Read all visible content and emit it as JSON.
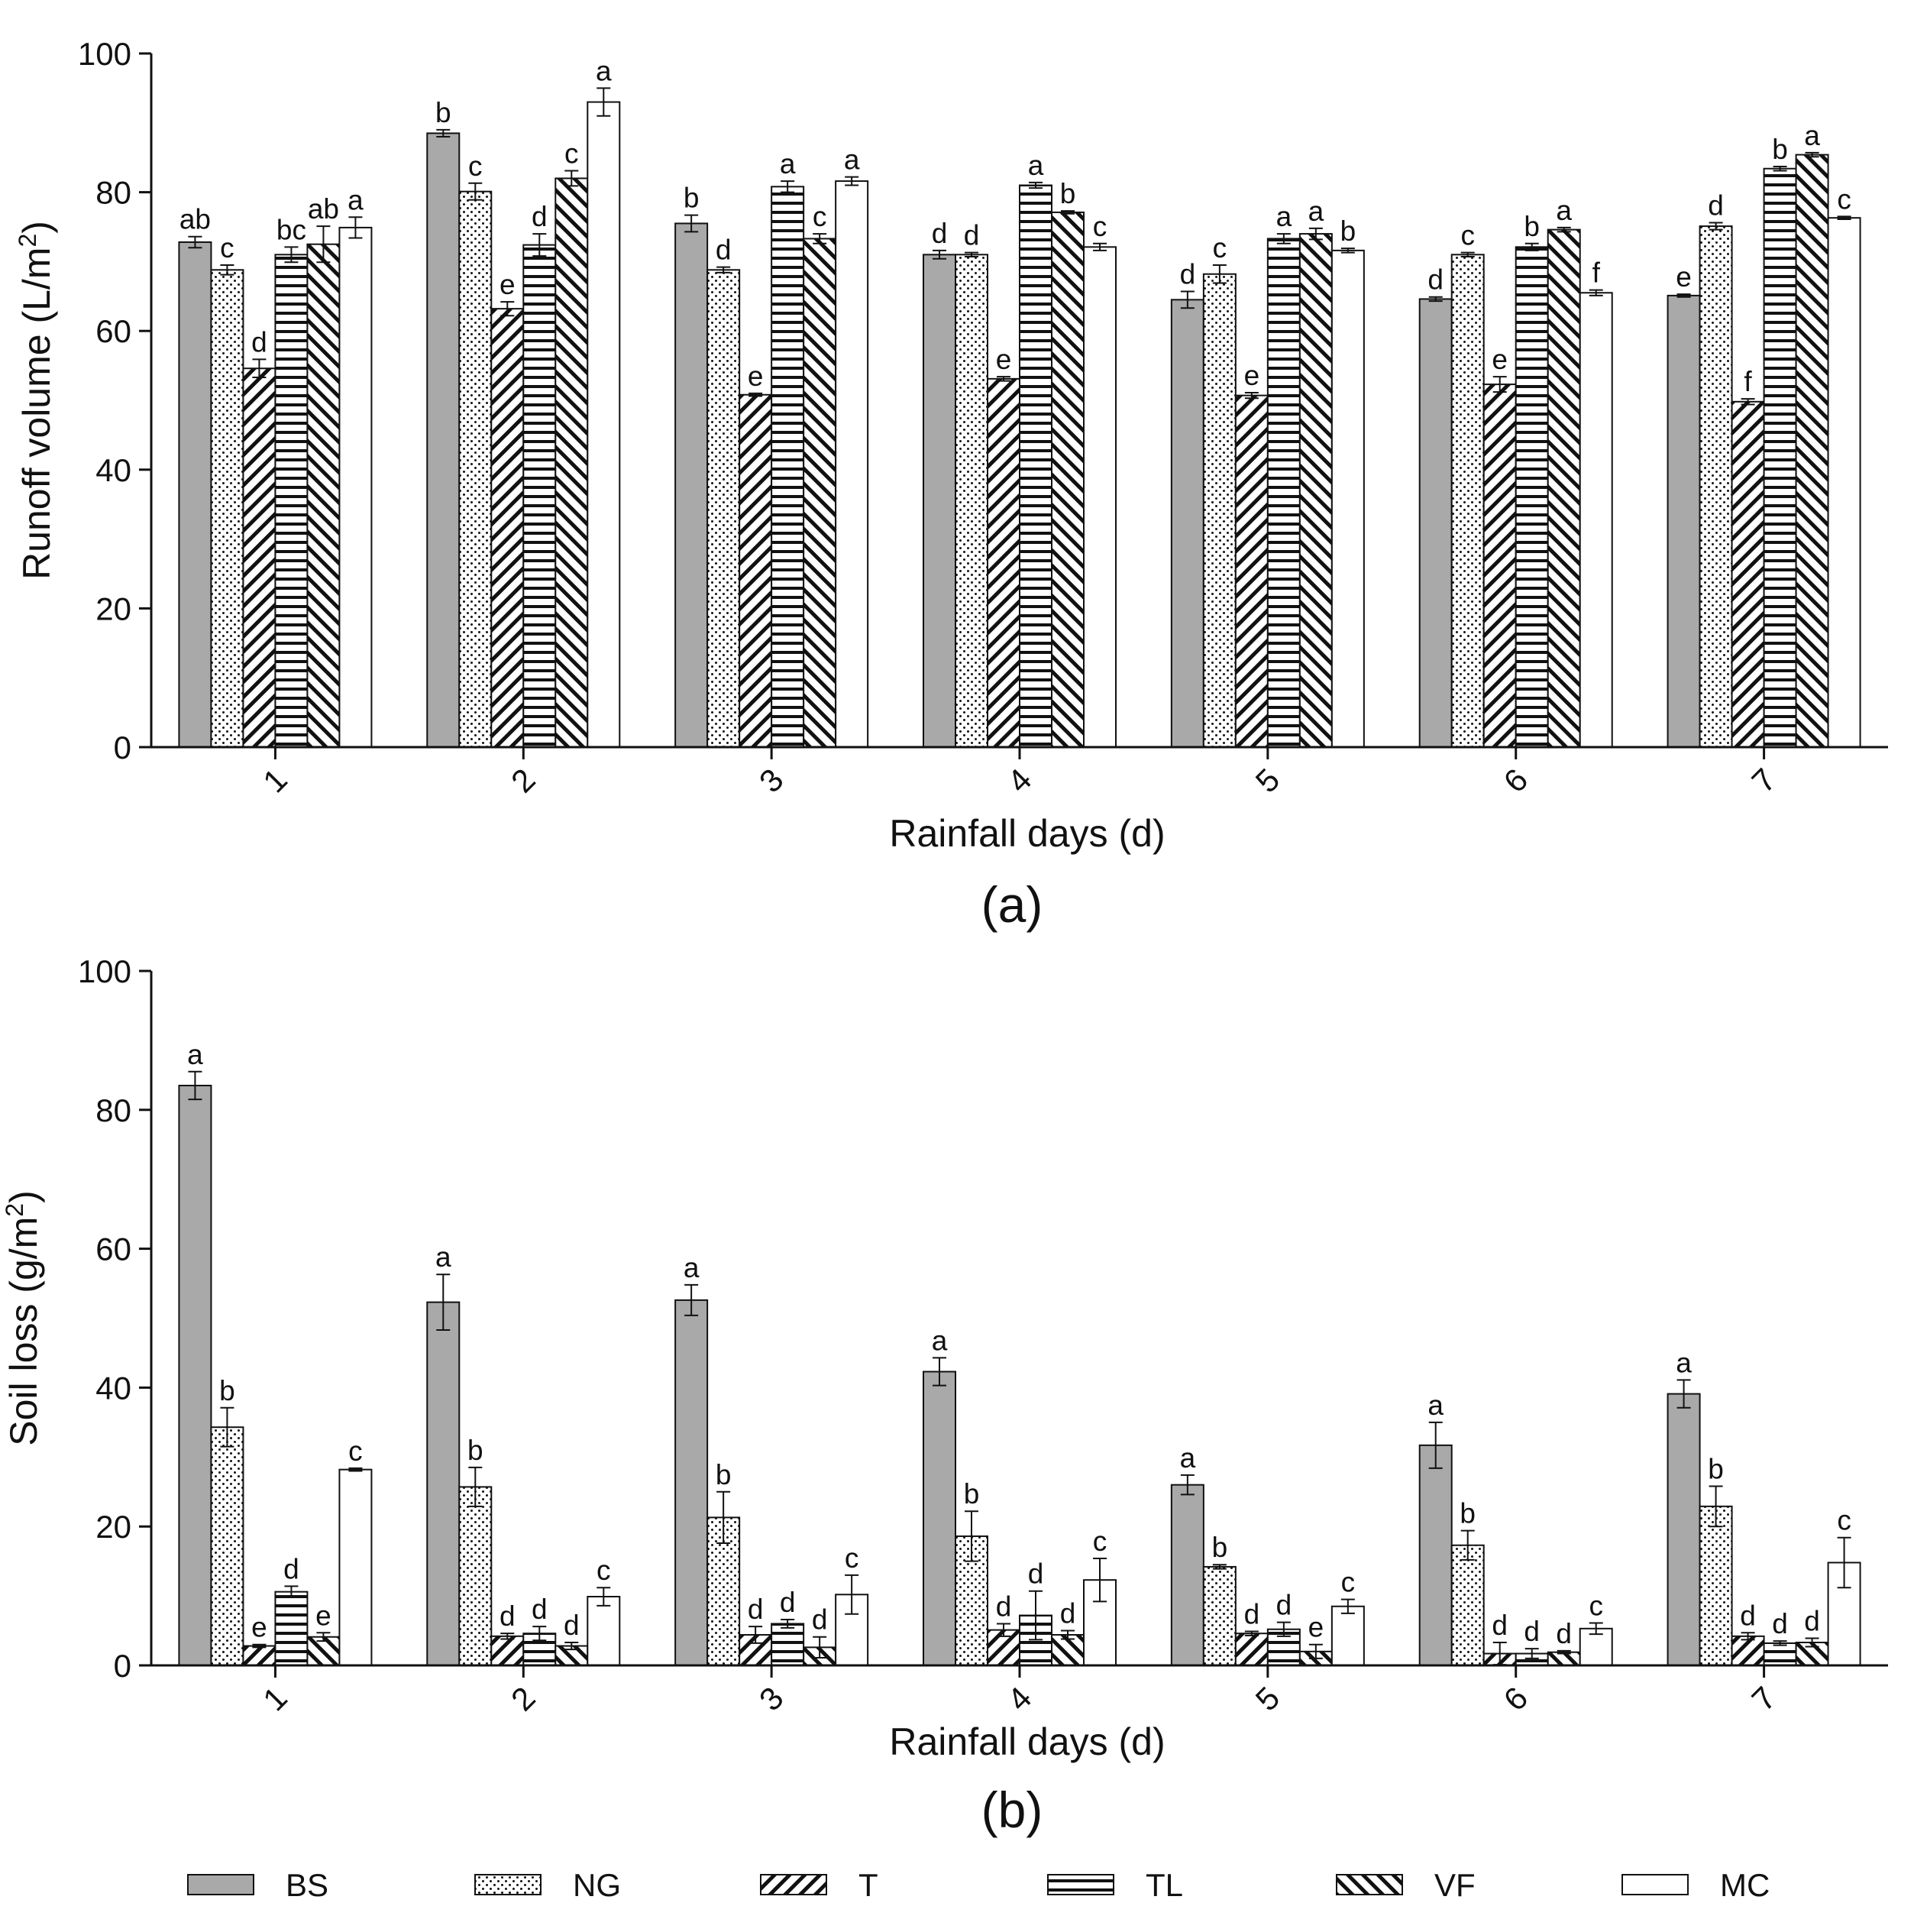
{
  "legend": {
    "items": [
      {
        "label": "BS",
        "pattern": "solid-gray"
      },
      {
        "label": "NG",
        "pattern": "dots"
      },
      {
        "label": "T",
        "pattern": "diag-right"
      },
      {
        "label": "TL",
        "pattern": "horizontal"
      },
      {
        "label": "VF",
        "pattern": "diag-left"
      },
      {
        "label": "MC",
        "pattern": "white"
      }
    ]
  },
  "colors": {
    "bs_fill": "#a9a9a9",
    "bar_stroke": "#111111",
    "pattern_ink": "#111111",
    "background": "#ffffff"
  },
  "chart_data": [
    {
      "type": "bar",
      "panel_label": "(a)",
      "xlabel": "Rainfall days (d)",
      "ylabel": "Runoff volume (L/m",
      "ylabel_sup": "2",
      "ylabel_tail": ")",
      "ylim": [
        0,
        100
      ],
      "yticks": [
        "0",
        "20",
        "40",
        "60",
        "80",
        "100"
      ],
      "grid": false,
      "categories": [
        "1",
        "2",
        "3",
        "4",
        "5",
        "6",
        "7"
      ],
      "series": [
        {
          "name": "BS",
          "values": [
            72.8,
            88.5,
            75.5,
            71.0,
            64.5,
            64.6,
            65.1
          ],
          "errors": [
            0.8,
            0.5,
            1.2,
            0.6,
            1.2,
            0.3,
            0.2
          ],
          "letters": [
            "ab",
            "b",
            "b",
            "d",
            "d",
            "d",
            "e"
          ]
        },
        {
          "name": "NG",
          "values": [
            68.8,
            80.1,
            68.8,
            71.0,
            68.2,
            71.0,
            75.1
          ],
          "errors": [
            0.7,
            1.2,
            0.4,
            0.3,
            1.3,
            0.3,
            0.5
          ],
          "letters": [
            "c",
            "c",
            "d",
            "d",
            "c",
            "c",
            "d"
          ]
        },
        {
          "name": "T",
          "values": [
            54.6,
            63.2,
            50.8,
            53.1,
            50.7,
            52.3,
            49.8
          ],
          "errors": [
            1.3,
            1.0,
            0.2,
            0.3,
            0.4,
            1.1,
            0.4
          ],
          "letters": [
            "d",
            "e",
            "e",
            "e",
            "e",
            "e",
            "f"
          ]
        },
        {
          "name": "TL",
          "values": [
            71.0,
            72.4,
            80.8,
            81.0,
            73.3,
            72.1,
            83.4
          ],
          "errors": [
            1.1,
            1.6,
            0.8,
            0.4,
            0.7,
            0.5,
            0.3
          ],
          "letters": [
            "bc",
            "d",
            "a",
            "a",
            "a",
            "b",
            "b"
          ]
        },
        {
          "name": "VF",
          "values": [
            72.5,
            82.0,
            73.3,
            77.1,
            74.0,
            74.6,
            85.4
          ],
          "errors": [
            2.6,
            1.1,
            0.7,
            0.2,
            0.8,
            0.3,
            0.3
          ],
          "letters": [
            "ab",
            "c",
            "c",
            "b",
            "a",
            "a",
            "a"
          ]
        },
        {
          "name": "MC",
          "values": [
            74.9,
            93.0,
            81.6,
            72.1,
            71.6,
            65.5,
            76.3
          ],
          "errors": [
            1.5,
            2.0,
            0.6,
            0.5,
            0.3,
            0.4,
            0.2
          ],
          "letters": [
            "a",
            "a",
            "a",
            "c",
            "b",
            "f",
            "c"
          ]
        }
      ]
    },
    {
      "type": "bar",
      "panel_label": "(b)",
      "xlabel": "Rainfall days (d)",
      "ylabel": "Soil loss (g/m",
      "ylabel_sup": "2",
      "ylabel_tail": ")",
      "ylim": [
        0,
        100
      ],
      "yticks": [
        "0",
        "20",
        "40",
        "60",
        "80",
        "100"
      ],
      "grid": false,
      "categories": [
        "1",
        "2",
        "3",
        "4",
        "5",
        "6",
        "7"
      ],
      "series": [
        {
          "name": "BS",
          "values": [
            83.5,
            52.3,
            52.6,
            42.3,
            26.0,
            31.7,
            39.1
          ],
          "errors": [
            2.0,
            4.0,
            2.2,
            2.0,
            1.4,
            3.3,
            2.0
          ],
          "letters": [
            "a",
            "a",
            "a",
            "a",
            "a",
            "a",
            "a"
          ]
        },
        {
          "name": "NG",
          "values": [
            34.3,
            25.7,
            21.3,
            18.6,
            14.2,
            17.3,
            22.9
          ],
          "errors": [
            2.8,
            2.8,
            3.7,
            3.6,
            0.3,
            2.1,
            2.9
          ],
          "letters": [
            "b",
            "b",
            "b",
            "b",
            "b",
            "b",
            "b"
          ]
        },
        {
          "name": "T",
          "values": [
            2.8,
            4.2,
            4.4,
            5.1,
            4.6,
            1.7,
            4.2
          ],
          "errors": [
            0.2,
            0.4,
            1.2,
            0.9,
            0.3,
            1.6,
            0.5
          ],
          "letters": [
            "e",
            "d",
            "d",
            "d",
            "d",
            "d",
            "d"
          ]
        },
        {
          "name": "TL",
          "values": [
            10.6,
            4.6,
            6.0,
            7.2,
            5.2,
            1.7,
            3.2
          ],
          "errors": [
            0.8,
            1.0,
            0.6,
            3.5,
            1.0,
            0.7,
            0.3
          ],
          "letters": [
            "d",
            "d",
            "d",
            "d",
            "d",
            "d",
            "d"
          ]
        },
        {
          "name": "VF",
          "values": [
            4.1,
            2.8,
            2.6,
            4.4,
            2.0,
            1.9,
            3.3
          ],
          "errors": [
            0.6,
            0.5,
            1.5,
            0.6,
            1.0,
            0.2,
            0.6
          ],
          "letters": [
            "e",
            "d",
            "d",
            "d",
            "e",
            "d",
            "d"
          ]
        },
        {
          "name": "MC",
          "values": [
            28.2,
            9.9,
            10.2,
            12.3,
            8.5,
            5.3,
            14.8
          ],
          "errors": [
            0.2,
            1.3,
            2.8,
            3.1,
            1.0,
            0.8,
            3.6
          ],
          "letters": [
            "c",
            "c",
            "c",
            "c",
            "c",
            "c",
            "c"
          ]
        }
      ]
    }
  ]
}
